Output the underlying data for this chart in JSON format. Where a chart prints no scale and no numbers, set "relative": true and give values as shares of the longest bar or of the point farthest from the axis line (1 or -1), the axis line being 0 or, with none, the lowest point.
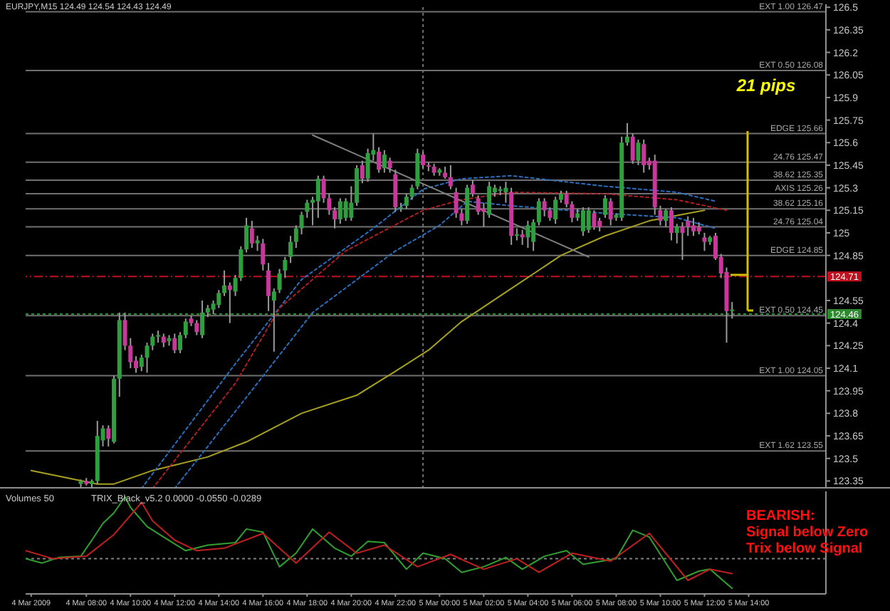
{
  "chart_data": [
    {
      "type": "candlestick",
      "title": "EURJPY,M15  124.49 124.54 124.43 124.49",
      "x": [
        "2009-03-04T07:45",
        "2009-03-04T08:00",
        "2009-03-04T08:15",
        "2009-03-04T08:30",
        "2009-03-04T08:45",
        "2009-03-04T09:00",
        "2009-03-04T09:15",
        "2009-03-04T09:30",
        "2009-03-04T09:45",
        "2009-03-04T10:00",
        "2009-03-04T10:15",
        "2009-03-04T10:30",
        "2009-03-04T10:45",
        "2009-03-04T11:00",
        "2009-03-04T11:15",
        "2009-03-04T11:30",
        "2009-03-04T11:45",
        "2009-03-04T12:00",
        "2009-03-04T12:15",
        "2009-03-04T12:30",
        "2009-03-04T12:45",
        "2009-03-04T13:00",
        "2009-03-04T13:15",
        "2009-03-04T13:30",
        "2009-03-04T13:45",
        "2009-03-04T14:00",
        "2009-03-04T14:15",
        "2009-03-04T14:30",
        "2009-03-04T14:45",
        "2009-03-04T15:00",
        "2009-03-04T15:15",
        "2009-03-04T15:30",
        "2009-03-04T15:45",
        "2009-03-04T16:00",
        "2009-03-04T16:15",
        "2009-03-04T16:30",
        "2009-03-04T16:45",
        "2009-03-04T17:00",
        "2009-03-04T17:15",
        "2009-03-04T17:30",
        "2009-03-04T17:45",
        "2009-03-04T18:00",
        "2009-03-04T18:15",
        "2009-03-04T18:30",
        "2009-03-04T18:45",
        "2009-03-04T19:00",
        "2009-03-04T19:15",
        "2009-03-04T19:30",
        "2009-03-04T19:45",
        "2009-03-04T20:00",
        "2009-03-04T20:15",
        "2009-03-04T20:30",
        "2009-03-04T20:45",
        "2009-03-04T21:00",
        "2009-03-04T21:15",
        "2009-03-04T21:30",
        "2009-03-04T21:45",
        "2009-03-04T22:00",
        "2009-03-04T22:15",
        "2009-03-04T22:30",
        "2009-03-04T22:45",
        "2009-03-04T23:00",
        "2009-03-04T23:15",
        "2009-03-04T23:30",
        "2009-03-04T23:45",
        "2009-03-05T00:00",
        "2009-03-05T00:15",
        "2009-03-05T00:30",
        "2009-03-05T00:45",
        "2009-03-05T01:00",
        "2009-03-05T01:15",
        "2009-03-05T01:30",
        "2009-03-05T01:45",
        "2009-03-05T02:00",
        "2009-03-05T02:15",
        "2009-03-05T02:30",
        "2009-03-05T02:45",
        "2009-03-05T03:00",
        "2009-03-05T03:15",
        "2009-03-05T03:30",
        "2009-03-05T03:45",
        "2009-03-05T04:00",
        "2009-03-05T04:15",
        "2009-03-05T04:30",
        "2009-03-05T04:45",
        "2009-03-05T05:00",
        "2009-03-05T05:15",
        "2009-03-05T05:30",
        "2009-03-05T05:45",
        "2009-03-05T06:00",
        "2009-03-05T06:15",
        "2009-03-05T06:30",
        "2009-03-05T06:45",
        "2009-03-05T07:00",
        "2009-03-05T07:15",
        "2009-03-05T07:30",
        "2009-03-05T07:45",
        "2009-03-05T08:00",
        "2009-03-05T08:15",
        "2009-03-05T08:30",
        "2009-03-05T08:45",
        "2009-03-05T09:00",
        "2009-03-05T09:15",
        "2009-03-05T09:30",
        "2009-03-05T09:45",
        "2009-03-05T10:00",
        "2009-03-05T10:15",
        "2009-03-05T10:30",
        "2009-03-05T10:45",
        "2009-03-05T11:00",
        "2009-03-05T11:15",
        "2009-03-05T11:30",
        "2009-03-05T11:45",
        "2009-03-05T12:00",
        "2009-03-05T12:15",
        "2009-03-05T12:30",
        "2009-03-05T12:45",
        "2009-03-05T13:00",
        "2009-03-05T13:15"
      ],
      "ohlc": [
        [
          123.33,
          123.36,
          123.31,
          123.35
        ],
        [
          123.35,
          123.37,
          123.32,
          123.33
        ],
        [
          123.33,
          123.36,
          123.3,
          123.35
        ],
        [
          123.35,
          123.75,
          123.33,
          123.65
        ],
        [
          123.62,
          123.72,
          123.58,
          123.7
        ],
        [
          123.7,
          123.72,
          123.58,
          123.63
        ],
        [
          123.61,
          124.05,
          123.6,
          124.03
        ],
        [
          124.03,
          124.47,
          123.91,
          124.42
        ],
        [
          124.42,
          124.47,
          124.22,
          124.25
        ],
        [
          124.25,
          124.3,
          124.1,
          124.14
        ],
        [
          124.15,
          124.18,
          124.07,
          124.1
        ],
        [
          124.11,
          124.19,
          124.08,
          124.17
        ],
        [
          124.17,
          124.27,
          124.07,
          124.25
        ],
        [
          124.25,
          124.33,
          124.22,
          124.31
        ],
        [
          124.31,
          124.35,
          124.27,
          124.32
        ],
        [
          124.31,
          124.33,
          124.24,
          124.27
        ],
        [
          124.28,
          124.32,
          124.25,
          124.3
        ],
        [
          124.3,
          124.33,
          124.2,
          124.22
        ],
        [
          124.22,
          124.34,
          124.2,
          124.32
        ],
        [
          124.32,
          124.43,
          124.3,
          124.41
        ],
        [
          124.43,
          124.45,
          124.38,
          124.4
        ],
        [
          124.4,
          124.42,
          124.32,
          124.34
        ],
        [
          124.32,
          124.55,
          124.3,
          124.47
        ],
        [
          124.47,
          124.52,
          124.44,
          124.5
        ],
        [
          124.49,
          124.55,
          124.46,
          124.53
        ],
        [
          124.52,
          124.62,
          124.5,
          124.6
        ],
        [
          124.6,
          124.75,
          124.58,
          124.65
        ],
        [
          124.65,
          124.67,
          124.4,
          124.62
        ],
        [
          124.61,
          124.72,
          124.58,
          124.7
        ],
        [
          124.7,
          124.91,
          124.68,
          124.89
        ],
        [
          124.89,
          125.1,
          124.87,
          125.05
        ],
        [
          125.03,
          125.08,
          124.9,
          124.93
        ],
        [
          124.93,
          124.98,
          124.88,
          124.95
        ],
        [
          124.93,
          124.96,
          124.75,
          124.79
        ],
        [
          124.75,
          124.8,
          124.48,
          124.58
        ],
        [
          124.55,
          124.63,
          124.21,
          124.61
        ],
        [
          124.62,
          124.76,
          124.6,
          124.73
        ],
        [
          124.75,
          124.84,
          124.7,
          124.82
        ],
        [
          124.84,
          124.98,
          124.8,
          124.94
        ],
        [
          124.94,
          125.05,
          124.9,
          125.03
        ],
        [
          125.03,
          125.14,
          124.99,
          125.12
        ],
        [
          125.14,
          125.22,
          125.1,
          125.2
        ],
        [
          125.2,
          125.24,
          125.05,
          125.22
        ],
        [
          125.21,
          125.38,
          125.1,
          125.36
        ],
        [
          125.36,
          125.38,
          125.2,
          125.23
        ],
        [
          125.23,
          125.26,
          125.12,
          125.15
        ],
        [
          125.15,
          125.17,
          125.03,
          125.09
        ],
        [
          125.09,
          125.23,
          125.06,
          125.21
        ],
        [
          125.1,
          125.23,
          125.08,
          125.21
        ],
        [
          125.1,
          125.31,
          125.08,
          125.2
        ],
        [
          125.2,
          125.45,
          125.18,
          125.43
        ],
        [
          125.45,
          125.48,
          125.33,
          125.36
        ],
        [
          125.36,
          125.56,
          125.34,
          125.53
        ],
        [
          125.52,
          125.66,
          125.48,
          125.55
        ],
        [
          125.54,
          125.57,
          125.4,
          125.42
        ],
        [
          125.43,
          125.55,
          125.4,
          125.52
        ],
        [
          125.48,
          125.5,
          125.4,
          125.43
        ],
        [
          125.39,
          125.42,
          125.14,
          125.17
        ],
        [
          125.17,
          125.2,
          125.14,
          125.17
        ],
        [
          125.18,
          125.26,
          125.16,
          125.24
        ],
        [
          125.24,
          125.32,
          125.22,
          125.3
        ],
        [
          125.31,
          125.56,
          125.29,
          125.53
        ],
        [
          125.52,
          125.54,
          125.43,
          125.45
        ],
        [
          125.45,
          125.47,
          125.41,
          125.44
        ],
        [
          125.44,
          125.46,
          125.38,
          125.4
        ],
        [
          125.4,
          125.43,
          125.38,
          125.42
        ],
        [
          125.4,
          125.44,
          125.36,
          125.37
        ],
        [
          125.37,
          125.45,
          125.29,
          125.31
        ],
        [
          125.27,
          125.3,
          125.1,
          125.13
        ],
        [
          125.13,
          125.16,
          125.05,
          125.08
        ],
        [
          125.08,
          125.32,
          125.06,
          125.3
        ],
        [
          125.32,
          125.35,
          125.24,
          125.26
        ],
        [
          125.23,
          125.25,
          125.12,
          125.14
        ],
        [
          125.16,
          125.2,
          125.04,
          125.14
        ],
        [
          125.12,
          125.34,
          125.1,
          125.31
        ],
        [
          125.27,
          125.32,
          125.24,
          125.3
        ],
        [
          125.28,
          125.31,
          125.25,
          125.29
        ],
        [
          125.27,
          125.34,
          125.2,
          125.3
        ],
        [
          125.27,
          125.3,
          124.92,
          124.98
        ],
        [
          124.98,
          125.03,
          124.95,
          124.99
        ],
        [
          124.99,
          125.02,
          124.92,
          124.97
        ],
        [
          124.97,
          125.08,
          124.9,
          125.05
        ],
        [
          124.94,
          125.09,
          124.88,
          125.07
        ],
        [
          125.07,
          125.23,
          125.05,
          125.21
        ],
        [
          125.21,
          125.23,
          125.11,
          125.15
        ],
        [
          125.15,
          125.17,
          125.08,
          125.1
        ],
        [
          125.09,
          125.24,
          125.06,
          125.22
        ],
        [
          125.22,
          125.28,
          125.2,
          125.26
        ],
        [
          125.26,
          125.28,
          125.17,
          125.19
        ],
        [
          125.19,
          125.21,
          125.07,
          125.1
        ],
        [
          125.1,
          125.16,
          125.08,
          125.13
        ],
        [
          125.01,
          125.17,
          124.98,
          125.15
        ],
        [
          125.02,
          125.17,
          125,
          125.15
        ],
        [
          125.13,
          125.15,
          125.02,
          125.04
        ],
        [
          125.08,
          125.1,
          125.01,
          125.04
        ],
        [
          125.12,
          125.25,
          125.1,
          125.23
        ],
        [
          125.21,
          125.23,
          125.05,
          125.09
        ],
        [
          125.1,
          125.13,
          125.08,
          125.12
        ],
        [
          125.1,
          125.64,
          125.08,
          125.6
        ],
        [
          125.6,
          125.73,
          125.58,
          125.64
        ],
        [
          125.64,
          125.66,
          125.46,
          125.48
        ],
        [
          125.48,
          125.62,
          125.45,
          125.6
        ],
        [
          125.59,
          125.62,
          125.4,
          125.45
        ],
        [
          125.48,
          125.5,
          125.42,
          125.45
        ],
        [
          125.48,
          125.52,
          125.12,
          125.17
        ],
        [
          125.15,
          125.18,
          125.05,
          125.08
        ],
        [
          125.08,
          125.16,
          125.04,
          125.15
        ],
        [
          125.15,
          125.17,
          124.95,
          125
        ],
        [
          125,
          125.06,
          124.93,
          125.04
        ],
        [
          125.04,
          125.07,
          124.82,
          125
        ],
        [
          125.08,
          125.11,
          124.98,
          125.04
        ],
        [
          125.05,
          125.1,
          124.98,
          125.01
        ],
        [
          125.04,
          125.07,
          124.99,
          125.01
        ],
        [
          124.97,
          125,
          124.88,
          124.94
        ],
        [
          124.94,
          124.98,
          124.92,
          124.97
        ],
        [
          124.98,
          125,
          124.82,
          124.83
        ],
        [
          124.84,
          124.86,
          124.7,
          124.73
        ],
        [
          124.74,
          124.77,
          124.27,
          124.48
        ],
        [
          124.49,
          124.54,
          124.43,
          124.49
        ]
      ],
      "colors": [
        "#2e9e3e",
        "#c8379a",
        "#2e9e3e",
        "#2e9e3e",
        "#2e9e3e",
        "#c8379a",
        "#2e9e3e",
        "#2e9e3e",
        "#c8379a",
        "#c8379a",
        "#c8379a",
        "#2e9e3e",
        "#2e9e3e",
        "#2e9e3e",
        "#2e9e3e",
        "#c8379a",
        "#2e9e3e",
        "#c8379a",
        "#2e9e3e",
        "#2e9e3e",
        "#c8379a",
        "#c8379a",
        "#2e9e3e",
        "#2e9e3e",
        "#2e9e3e",
        "#2e9e3e",
        "#2e9e3e",
        "#c8379a",
        "#2e9e3e",
        "#2e9e3e",
        "#2e9e3e",
        "#c8379a",
        "#2e9e3e",
        "#c8379a",
        "#c8379a",
        "#2e9e3e",
        "#2e9e3e",
        "#2e9e3e",
        "#2e9e3e",
        "#2e9e3e",
        "#2e9e3e",
        "#2e9e3e",
        "#2e9e3e",
        "#2e9e3e",
        "#c8379a",
        "#c8379a",
        "#c8379a",
        "#2e9e3e",
        "#2e9e3e",
        "#2e9e3e",
        "#2e9e3e",
        "#c8379a",
        "#2e9e3e",
        "#2e9e3e",
        "#c8379a",
        "#2e9e3e",
        "#c8379a",
        "#c8379a",
        "#2e9e3e",
        "#2e9e3e",
        "#2e9e3e",
        "#2e9e3e",
        "#c8379a",
        "#c8379a",
        "#c8379a",
        "#2e9e3e",
        "#c8379a",
        "#c8379a",
        "#c8379a",
        "#c8379a",
        "#2e9e3e",
        "#c8379a",
        "#c8379a",
        "#c8379a",
        "#2e9e3e",
        "#2e9e3e",
        "#2e9e3e",
        "#2e9e3e",
        "#c8379a",
        "#2e9e3e",
        "#c8379a",
        "#2e9e3e",
        "#2e9e3e",
        "#2e9e3e",
        "#c8379a",
        "#c8379a",
        "#2e9e3e",
        "#2e9e3e",
        "#c8379a",
        "#c8379a",
        "#2e9e3e",
        "#2e9e3e",
        "#2e9e3e",
        "#c8379a",
        "#c8379a",
        "#2e9e3e",
        "#c8379a",
        "#2e9e3e",
        "#2e9e3e",
        "#2e9e3e",
        "#c8379a",
        "#2e9e3e",
        "#c8379a",
        "#c8379a",
        "#c8379a",
        "#c8379a",
        "#2e9e3e",
        "#c8379a",
        "#2e9e3e",
        "#c8379a",
        "#c8379a",
        "#c8379a",
        "#c8379a",
        "#c8379a",
        "#2e9e3e",
        "#c8379a",
        "#c8379a",
        "#c8379a",
        "#2e9e3e"
      ],
      "series": [
        {
          "type": "line",
          "color": "#a8a020",
          "line_style": "solid",
          "x": [
            "2009-03-04T05:30",
            "2009-03-04T08:30",
            "2009-03-04T09:15",
            "2009-03-04T11:00",
            "2009-03-04T13:30",
            "2009-03-04T15:15",
            "2009-03-04T17:45",
            "2009-03-04T20:15",
            "2009-03-04T22:00",
            "2009-03-04T23:30",
            "2009-03-05T01:00",
            "2009-03-05T03:15",
            "2009-03-05T05:30",
            "2009-03-05T07:30",
            "2009-03-05T09:30",
            "2009-03-05T12:00"
          ],
          "values": [
            123.42,
            123.33,
            123.33,
            123.42,
            123.51,
            123.61,
            123.8,
            123.92,
            124.08,
            124.22,
            124.41,
            124.63,
            124.85,
            124.98,
            125.08,
            125.15
          ]
        },
        {
          "type": "line",
          "color": "#2a70c0",
          "line_style": "dotted",
          "x": [
            "2009-03-04T10:30",
            "2009-03-04T14:45",
            "2009-03-04T17:45",
            "2009-03-04T21:00",
            "2009-03-04T23:15",
            "2009-03-05T01:00",
            "2009-03-05T03:15",
            "2009-03-05T07:30",
            "2009-03-05T10:45",
            "2009-03-05T12:30"
          ],
          "values": [
            123.3,
            124.13,
            124.69,
            125.03,
            125.29,
            125.36,
            125.38,
            125.31,
            125.27,
            125.21
          ]
        },
        {
          "type": "line",
          "color": "#b02020",
          "line_style": "dotted",
          "x": [
            "2009-03-04T11:00",
            "2009-03-04T14:45",
            "2009-03-04T16:45",
            "2009-03-04T19:45",
            "2009-03-04T23:15",
            "2009-03-05T01:00",
            "2009-03-05T03:15",
            "2009-03-05T07:30",
            "2009-03-05T10:45",
            "2009-03-05T13:00"
          ],
          "values": [
            123.3,
            124,
            124.5,
            124.88,
            125.15,
            125.22,
            125.27,
            125.26,
            125.22,
            125.15
          ]
        },
        {
          "type": "line",
          "color": "#2a70c0",
          "line_style": "dotted",
          "x": [
            "2009-03-04T12:00",
            "2009-03-04T15:45",
            "2009-03-04T18:15",
            "2009-03-04T22:00",
            "2009-03-05T00:00",
            "2009-03-05T01:15",
            "2009-03-05T03:15",
            "2009-03-05T07:30",
            "2009-03-05T10:45",
            "2009-03-05T12:30"
          ],
          "values": [
            123.3,
            124,
            124.47,
            124.88,
            125.05,
            125.21,
            125.18,
            125.13,
            125.1,
            125.03
          ]
        },
        {
          "type": "line",
          "color": "#808080",
          "line_style": "solid",
          "x": [
            "2009-03-04T18:15",
            "2009-03-05T06:45"
          ],
          "values": [
            125.65,
            124.84
          ]
        }
      ],
      "xlim": [
        "2009-03-04T05:15",
        "2009-03-05T17:30"
      ],
      "ylim": [
        123.3,
        126.52
      ],
      "yticks": [
        126.5,
        126.35,
        126.2,
        126.05,
        125.9,
        125.75,
        125.6,
        125.45,
        125.3,
        125.15,
        125,
        124.85,
        124.55,
        124.4,
        124.25,
        124.1,
        123.95,
        123.8,
        123.65,
        123.5,
        123.35
      ],
      "tick_labels": "y",
      "ref_lines": [
        {
          "axis": "y",
          "value": 126.47,
          "label": "EXT  1.00  126.47",
          "color": "#707070",
          "line_style": "solid"
        },
        {
          "axis": "y",
          "value": 126.08,
          "label": "EXT  0.50  126.08",
          "color": "#707070",
          "line_style": "solid"
        },
        {
          "axis": "y",
          "value": 125.66,
          "label": "EDGE  125.66",
          "color": "#707070",
          "line_style": "solid"
        },
        {
          "axis": "y",
          "value": 125.47,
          "label": "24.76  125.47",
          "color": "#707070",
          "line_style": "solid"
        },
        {
          "axis": "y",
          "value": 125.35,
          "label": "38.62  125.35",
          "color": "#707070",
          "line_style": "solid"
        },
        {
          "axis": "y",
          "value": 125.26,
          "label": "AXIS  125.26",
          "color": "#707070",
          "line_style": "solid"
        },
        {
          "axis": "y",
          "value": 125.16,
          "label": "38.62  125.16",
          "color": "#707070",
          "line_style": "solid"
        },
        {
          "axis": "y",
          "value": 125.04,
          "label": "24.76  125.04",
          "color": "#707070",
          "line_style": "solid"
        },
        {
          "axis": "y",
          "value": 124.85,
          "label": "EDGE  124.85",
          "color": "#707070",
          "line_style": "solid"
        },
        {
          "axis": "y",
          "value": 124.45,
          "label": "EXT  0.50  124.45",
          "color": "#707070",
          "line_style": "solid"
        },
        {
          "axis": "y",
          "value": 124.05,
          "label": "EXT  1.00  124.05",
          "color": "#707070",
          "line_style": "solid"
        },
        {
          "axis": "y",
          "value": 123.55,
          "label": "EXT  1.62  123.55",
          "color": "#707070",
          "line_style": "solid"
        },
        {
          "axis": "y",
          "value": 124.71,
          "label": "124.71",
          "color": "#c01020",
          "line_style": "dashed"
        },
        {
          "axis": "y",
          "value": 124.46,
          "label": "124.46",
          "color": "#2e8a2e",
          "line_style": "dotted"
        },
        {
          "axis": "x",
          "value": "2009-03-04T23:15",
          "color": "#707070",
          "line_style": "dotted"
        }
      ],
      "annotations": [
        "21 pips"
      ]
    },
    {
      "type": "line",
      "relative": true,
      "series": [
        {
          "color": "#30a030",
          "x": [
            "2009-03-04T05:15",
            "2009-03-04T06:00",
            "2009-03-04T06:45",
            "2009-03-04T07:45",
            "2009-03-04T08:15",
            "2009-03-04T08:45",
            "2009-03-04T09:15",
            "2009-03-04T09:45",
            "2009-03-04T10:00",
            "2009-03-04T10:45",
            "2009-03-04T11:30",
            "2009-03-04T12:30",
            "2009-03-04T13:30",
            "2009-03-04T14:45",
            "2009-03-04T15:15",
            "2009-03-04T16:00",
            "2009-03-04T16:45",
            "2009-03-04T17:30",
            "2009-03-04T18:15",
            "2009-03-04T19:15",
            "2009-03-04T20:00",
            "2009-03-04T20:45",
            "2009-03-04T21:30",
            "2009-03-04T22:30",
            "2009-03-04T23:15",
            "2009-03-05T00:15",
            "2009-03-05T01:00",
            "2009-03-05T02:00",
            "2009-03-05T03:00",
            "2009-03-05T03:45",
            "2009-03-05T04:45",
            "2009-03-05T05:45",
            "2009-03-05T06:30",
            "2009-03-05T08:00",
            "2009-03-05T08:45",
            "2009-03-05T09:30",
            "2009-03-05T10:45",
            "2009-03-05T11:45",
            "2009-03-05T12:15",
            "2009-03-05T13:15"
          ],
          "values": [
            0,
            -0.07,
            0.02,
            0.04,
            0.3,
            0.57,
            0.74,
            1,
            0.83,
            0.52,
            0.35,
            0.13,
            0.22,
            0.26,
            0.48,
            0.43,
            -0.13,
            0.09,
            0.48,
            0.17,
            0.04,
            0.28,
            0.26,
            -0.17,
            0.09,
            0,
            -0.22,
            -0.13,
            0.02,
            -0.17,
            0.04,
            0.13,
            -0.09,
            0,
            0.46,
            0.35,
            -0.35,
            -0.2,
            -0.17,
            -0.48
          ]
        },
        {
          "color": "#c02020",
          "x": [
            "2009-03-04T05:15",
            "2009-03-04T06:30",
            "2009-03-04T08:00",
            "2009-03-04T09:15",
            "2009-03-04T10:30",
            "2009-03-04T11:00",
            "2009-03-04T12:00",
            "2009-03-04T13:00",
            "2009-03-04T14:15",
            "2009-03-04T16:00",
            "2009-03-04T17:30",
            "2009-03-04T19:00",
            "2009-03-04T20:15",
            "2009-03-04T21:30",
            "2009-03-04T23:00",
            "2009-03-05T00:30",
            "2009-03-05T02:00",
            "2009-03-05T03:30",
            "2009-03-05T04:30",
            "2009-03-05T06:00",
            "2009-03-05T07:45",
            "2009-03-05T09:30",
            "2009-03-05T11:15",
            "2009-03-05T12:15",
            "2009-03-05T13:15"
          ],
          "values": [
            0.13,
            0,
            0.04,
            0.39,
            0.91,
            0.61,
            0.3,
            0.13,
            0.17,
            0.41,
            -0.07,
            0.43,
            0.09,
            0.22,
            -0.13,
            0.07,
            -0.17,
            0,
            -0.22,
            0.09,
            -0.04,
            0.41,
            -0.35,
            -0.17,
            -0.24
          ]
        }
      ],
      "xlim": [
        "2009-03-04T05:15",
        "2009-03-05T17:30"
      ],
      "xticks": [
        {
          "value": "2009-03-04T05:30",
          "label": "4 Mar 2009"
        },
        {
          "value": "2009-03-04T08:00",
          "label": "4 Mar 08:00"
        },
        {
          "value": "2009-03-04T10:00",
          "label": "4 Mar 10:00"
        },
        {
          "value": "2009-03-04T12:00",
          "label": "4 Mar 12:00"
        },
        {
          "value": "2009-03-04T14:00",
          "label": "4 Mar 14:00"
        },
        {
          "value": "2009-03-04T16:00",
          "label": "4 Mar 16:00"
        },
        {
          "value": "2009-03-04T18:00",
          "label": "4 Mar 18:00"
        },
        {
          "value": "2009-03-04T20:00",
          "label": "4 Mar 20:00"
        },
        {
          "value": "2009-03-04T22:00",
          "label": "4 Mar 22:00"
        },
        {
          "value": "2009-03-05T00:00",
          "label": "5 Mar 00:00"
        },
        {
          "value": "2009-03-05T02:00",
          "label": "5 Mar 02:00"
        },
        {
          "value": "2009-03-05T04:00",
          "label": "5 Mar 04:00"
        },
        {
          "value": "2009-03-05T06:00",
          "label": "5 Mar 06:00"
        },
        {
          "value": "2009-03-05T08:00",
          "label": "5 Mar 08:00"
        },
        {
          "value": "2009-03-05T10:00",
          "label": "5 Mar 10:00"
        },
        {
          "value": "2009-03-05T12:00",
          "label": "5 Mar 12:00"
        },
        {
          "value": "2009-03-05T14:00",
          "label": "5 Mar 14:00"
        }
      ],
      "tick_labels": "x",
      "ref_lines": [
        {
          "axis": "y",
          "value": 0,
          "color": "#808080",
          "line_style": "dotted"
        }
      ],
      "annotations": [
        "Volumes 50",
        "TRIX_Black_v5.2  0.0000  -0.0550  -0.0289",
        "BEARISH:\nSignal below Zero\nTrix below Signal"
      ]
    }
  ]
}
